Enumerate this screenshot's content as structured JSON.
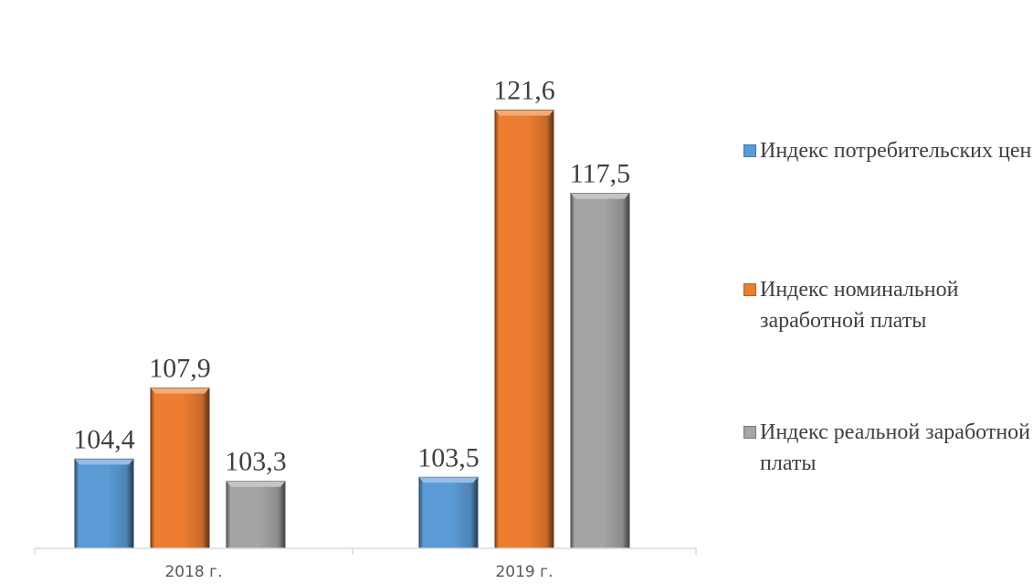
{
  "chart_data": {
    "type": "bar",
    "title": "",
    "xlabel": "",
    "ylabel": "",
    "ylim": [
      100,
      123
    ],
    "grid": false,
    "legend_position": "right",
    "categories": [
      "2018 г.",
      "2019 г."
    ],
    "series": [
      {
        "name": "Индекс потребительских цен",
        "color": "#5b9bd5",
        "values": [
          104.4,
          103.5
        ],
        "labels": [
          "104,4",
          "103,5"
        ]
      },
      {
        "name": "Индекс номинальной заработной платы",
        "color": "#ed7d31",
        "values": [
          107.9,
          121.6
        ],
        "labels": [
          "107,9",
          "121,6"
        ]
      },
      {
        "name": "Индекс реальной заработной платы",
        "color": "#a5a5a5",
        "values": [
          103.3,
          117.5
        ],
        "labels": [
          "103,3",
          "117,5"
        ]
      }
    ]
  }
}
